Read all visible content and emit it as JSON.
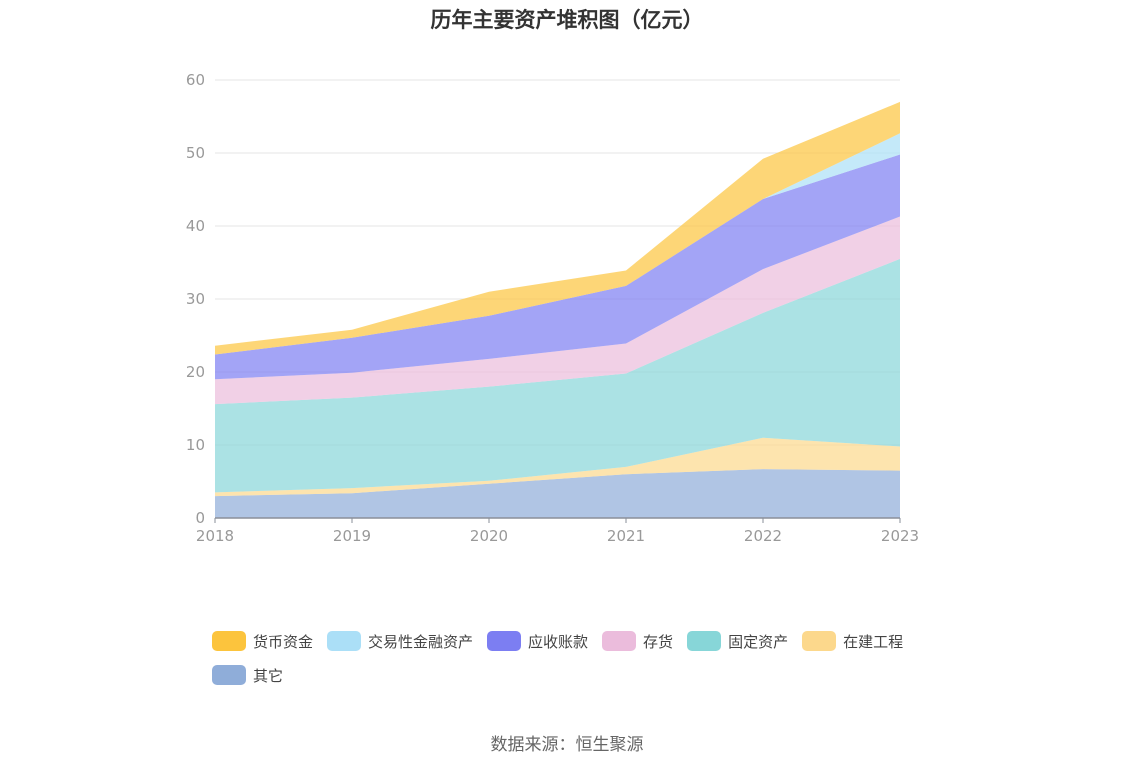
{
  "chart_data": {
    "type": "area",
    "stacked": true,
    "title": "历年主要资产堆积图（亿元）",
    "categories": [
      "2018",
      "2019",
      "2020",
      "2021",
      "2022",
      "2023"
    ],
    "ylim": [
      0,
      60
    ],
    "yticks": [
      "0",
      "10",
      "20",
      "30",
      "40",
      "50",
      "60"
    ],
    "grid": true,
    "legend_position": "bottom",
    "series": [
      {
        "name": "其它",
        "color": "#8fadd9",
        "values": [
          3.0,
          3.4,
          4.7,
          6.0,
          6.7,
          6.5
        ]
      },
      {
        "name": "在建工程",
        "color": "#fcd88c",
        "values": [
          0.5,
          0.7,
          0.4,
          1.0,
          4.3,
          3.3
        ]
      },
      {
        "name": "固定资产",
        "color": "#87d6d8",
        "values": [
          12.1,
          12.4,
          12.9,
          12.8,
          17.1,
          25.7
        ]
      },
      {
        "name": "存货",
        "color": "#ebbcdc",
        "values": [
          3.4,
          3.4,
          3.8,
          4.1,
          6.0,
          5.8
        ]
      },
      {
        "name": "应收账款",
        "color": "#7c7ef2",
        "values": [
          3.4,
          4.8,
          5.9,
          7.9,
          9.6,
          8.5
        ]
      },
      {
        "name": "交易性金融资产",
        "color": "#abdff7",
        "values": [
          0.0,
          0.0,
          0.0,
          0.0,
          0.0,
          2.9
        ]
      },
      {
        "name": "货币资金",
        "color": "#fcc43d",
        "values": [
          1.2,
          1.1,
          3.3,
          2.1,
          5.5,
          4.3
        ]
      }
    ]
  },
  "legend_order": [
    "货币资金",
    "交易性金融资产",
    "应收账款",
    "存货",
    "固定资产",
    "在建工程",
    "其它"
  ],
  "source_text": "数据来源：恒生聚源"
}
